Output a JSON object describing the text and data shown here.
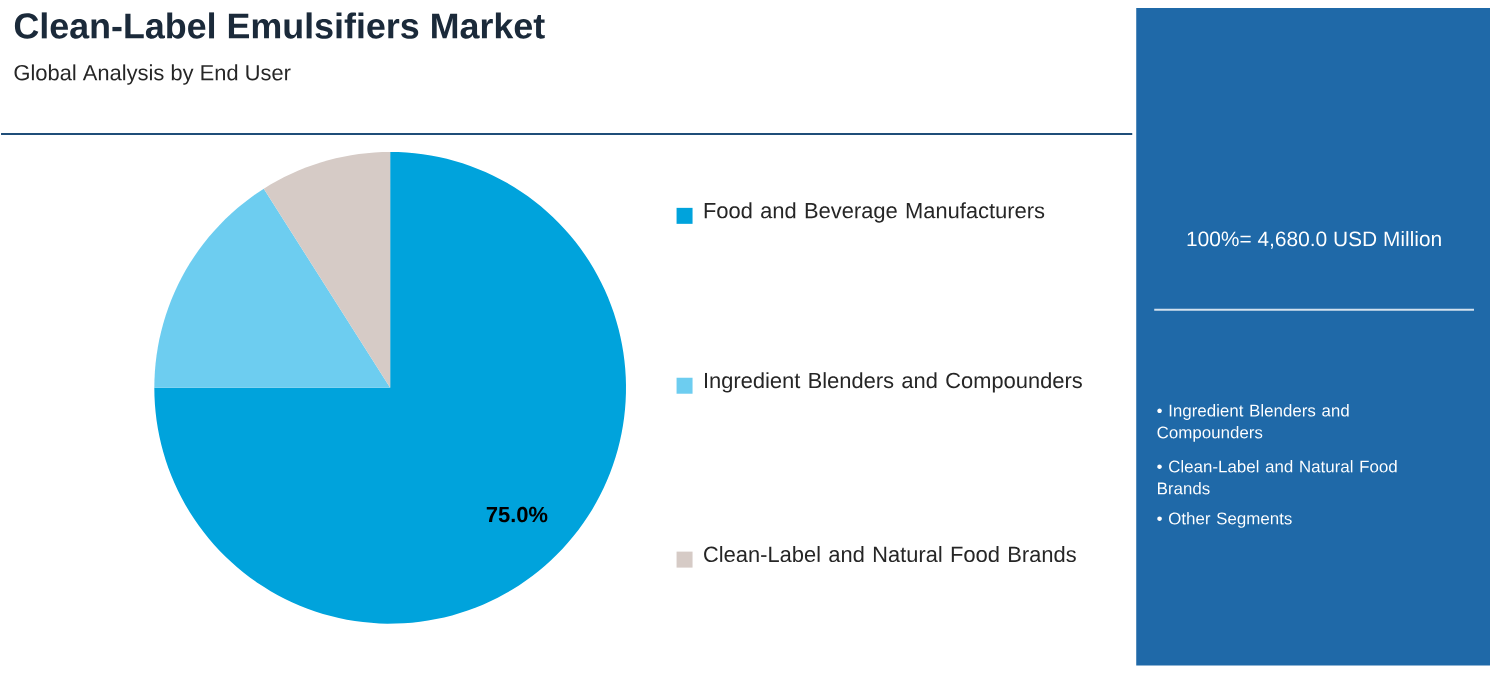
{
  "chart_data": {
    "type": "pie",
    "title": "Clean-Label Emulsifiers Market",
    "subtitle": "Global Analysis by End User",
    "categories": [
      "Food and Beverage Manufacturers",
      "Ingredient Blenders and Compounders",
      "Clean-Label and Natural Food Brands"
    ],
    "values": [
      75,
      16,
      9
    ],
    "colors": [
      "#00a3dc",
      "#6dcdf0",
      "#d6cbc6"
    ],
    "value_labels": [
      "75.0%",
      null,
      null
    ],
    "legend": "right",
    "annotations": [
      "100%= 4,680.0 USD Million",
      "• Ingredient Blenders and Compounders",
      "• Clean-Label and Natural Food Brands",
      "• Other Segments"
    ]
  }
}
